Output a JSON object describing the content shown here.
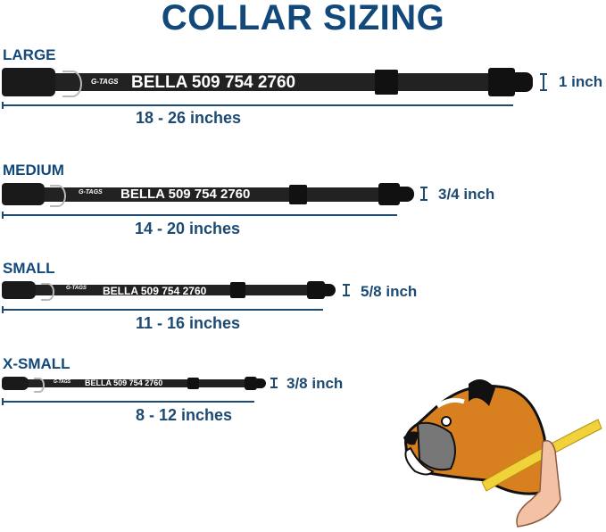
{
  "title": "COLLAR SIZING",
  "collars": [
    {
      "size": "LARGE",
      "name_text": "BELLA 509 754 2760",
      "logo": "G-TAGS",
      "range": "18 - 26 inches",
      "width": "1 inch"
    },
    {
      "size": "MEDIUM",
      "name_text": "BELLA 509 754 2760",
      "logo": "G-TAGS",
      "range": "14 - 20 inches",
      "width": "3/4 inch"
    },
    {
      "size": "SMALL",
      "name_text": "BELLA 509 754 2760",
      "logo": "G-TAGS",
      "range": "11 - 16 inches",
      "width": "5/8 inch"
    },
    {
      "size": "X-SMALL",
      "name_text": "BELLA 509 754 2760",
      "logo": "G-TAGS",
      "range": "8 - 12 inches",
      "width": "3/8 inch"
    }
  ],
  "colors": {
    "title": "#12497a",
    "text": "#1d4a72",
    "collar": "#222222",
    "dog_fur": "#d8801f",
    "tape": "#f2d23a"
  }
}
